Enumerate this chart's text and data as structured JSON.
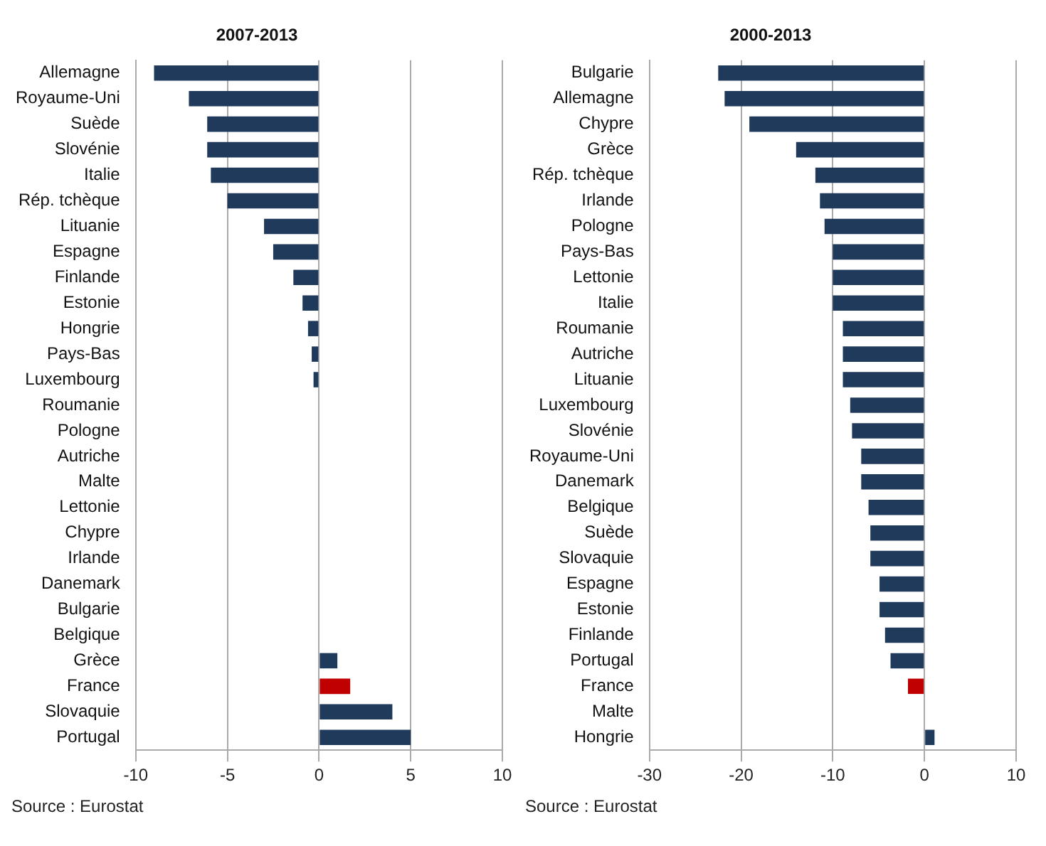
{
  "chart_data": [
    {
      "type": "bar",
      "orientation": "horizontal",
      "title": "2007-2013",
      "categories": [
        "Allemagne",
        "Royaume-Uni",
        "Suède",
        "Slovénie",
        "Italie",
        "Rép. tchèque",
        "Lituanie",
        "Espagne",
        "Finlande",
        "Estonie",
        "Hongrie",
        "Pays-Bas",
        "Luxembourg",
        "Roumanie",
        "Pologne",
        "Autriche",
        "Malte",
        "Lettonie",
        "Chypre",
        "Irlande",
        "Danemark",
        "Bulgarie",
        "Belgique",
        "Grèce",
        "France",
        "Slovaquie",
        "Portugal"
      ],
      "values": [
        -9.0,
        -7.1,
        -6.1,
        -6.1,
        -5.9,
        -5.0,
        -3.0,
        -2.5,
        -1.4,
        -0.9,
        -0.6,
        -0.4,
        -0.3,
        0,
        0,
        0,
        0,
        0,
        0,
        0,
        0,
        0,
        0,
        1.0,
        1.7,
        4.0,
        5.0
      ],
      "colors": [
        "#203a5c",
        "#203a5c",
        "#203a5c",
        "#203a5c",
        "#203a5c",
        "#203a5c",
        "#203a5c",
        "#203a5c",
        "#203a5c",
        "#203a5c",
        "#203a5c",
        "#203a5c",
        "#203a5c",
        "#203a5c",
        "#203a5c",
        "#203a5c",
        "#203a5c",
        "#203a5c",
        "#203a5c",
        "#203a5c",
        "#203a5c",
        "#203a5c",
        "#203a5c",
        "#203a5c",
        "#c00000",
        "#203a5c",
        "#203a5c"
      ],
      "xlim": [
        -10,
        10
      ],
      "xticks": [
        -10,
        -5,
        0,
        5,
        10
      ],
      "grid": "x",
      "annotations": [
        "Source : Eurostat"
      ]
    },
    {
      "type": "bar",
      "orientation": "horizontal",
      "title": "2000-2013",
      "categories": [
        "Bulgarie",
        "Allemagne",
        "Chypre",
        "Grèce",
        "Rép. tchèque",
        "Irlande",
        "Pologne",
        "Pays-Bas",
        "Lettonie",
        "Italie",
        "Roumanie",
        "Autriche",
        "Lituanie",
        "Luxembourg",
        "Slovénie",
        "Royaume-Uni",
        "Danemark",
        "Belgique",
        "Suède",
        "Slovaquie",
        "Espagne",
        "Estonie",
        "Finlande",
        "Portugal",
        "France",
        "Malte",
        "Hongrie"
      ],
      "values": [
        -22.5,
        -21.8,
        -19.1,
        -14.0,
        -11.9,
        -11.4,
        -10.9,
        -10,
        -10,
        -10,
        -8.9,
        -8.9,
        -8.9,
        -8.1,
        -7.9,
        -6.9,
        -6.9,
        -6.1,
        -5.9,
        -5.9,
        -4.9,
        -4.9,
        -4.3,
        -3.7,
        -1.8,
        0,
        1.1
      ],
      "colors": [
        "#203a5c",
        "#203a5c",
        "#203a5c",
        "#203a5c",
        "#203a5c",
        "#203a5c",
        "#203a5c",
        "#203a5c",
        "#203a5c",
        "#203a5c",
        "#203a5c",
        "#203a5c",
        "#203a5c",
        "#203a5c",
        "#203a5c",
        "#203a5c",
        "#203a5c",
        "#203a5c",
        "#203a5c",
        "#203a5c",
        "#203a5c",
        "#203a5c",
        "#203a5c",
        "#203a5c",
        "#c00000",
        "#203a5c",
        "#203a5c"
      ],
      "xlim": [
        -30,
        10
      ],
      "xticks": [
        -30,
        -20,
        -10,
        0,
        10
      ],
      "grid": "x",
      "annotations": [
        "Source : Eurostat"
      ]
    }
  ]
}
